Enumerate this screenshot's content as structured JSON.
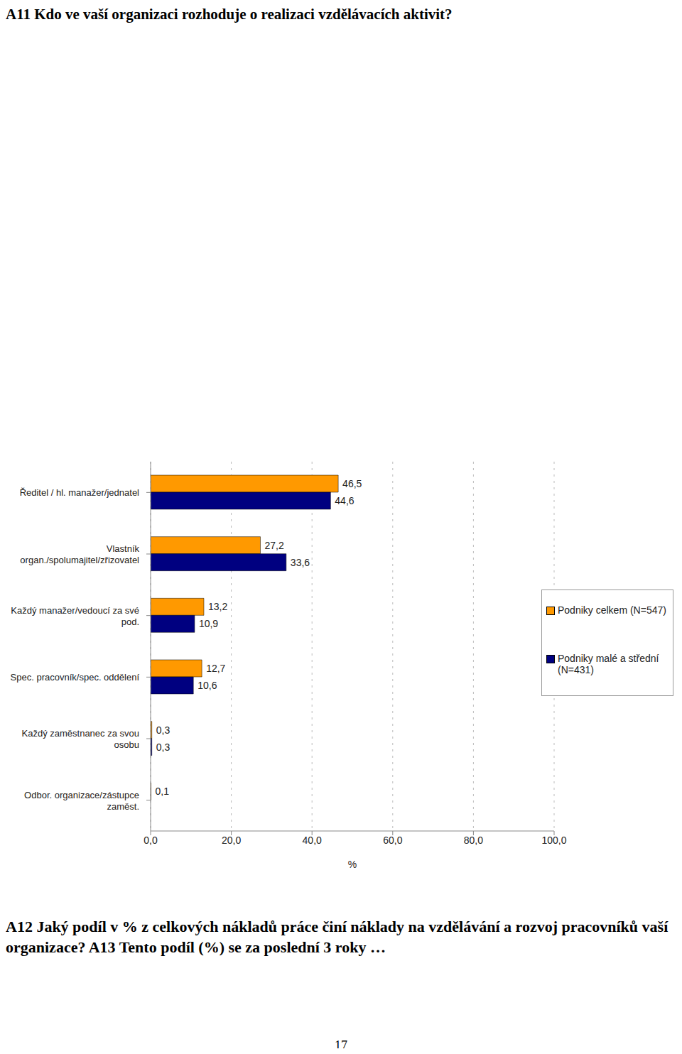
{
  "chart_data": {
    "type": "bar",
    "title": "A11 Kdo ve vaší organizaci rozhoduje o realizaci vzdělávacích aktivit?",
    "orientation": "horizontal",
    "categories": [
      "Ředitel / hl. manažer/jednatel",
      "Vlastník organ./spolumajitel/zřizovatel",
      "Každý manažer/vedoucí za své pod.",
      "Spec. pracovník/spec. oddělení",
      "Každý zaměstnanec za svou osobu",
      "Odbor. organizace/zástupce zaměst."
    ],
    "series": [
      {
        "name": "Podniky celkem (N=547)",
        "color": "#ff9900",
        "values": [
          46.5,
          27.2,
          13.2,
          12.7,
          0.3,
          0.1
        ],
        "value_labels": [
          "46,5",
          "27,2",
          "13,2",
          "12,7",
          "0,3",
          "0,1"
        ]
      },
      {
        "name": "Podniky malé a střední (N=431)",
        "color": "#000080",
        "values": [
          44.6,
          33.6,
          10.9,
          10.6,
          0.3,
          null
        ],
        "value_labels": [
          "44,6",
          "33,6",
          "10,9",
          "10,6",
          "0,3",
          null
        ]
      }
    ],
    "xlim": [
      0,
      100
    ],
    "xticks": [
      {
        "value": 0,
        "label": "0,0"
      },
      {
        "value": 20,
        "label": "20,0"
      },
      {
        "value": 40,
        "label": "40,0"
      },
      {
        "value": 60,
        "label": "60,0"
      },
      {
        "value": 80,
        "label": "80,0"
      },
      {
        "value": 100,
        "label": "100,0"
      }
    ],
    "x_label": "%",
    "grid": true,
    "data_labels": true,
    "legend": "right"
  },
  "document": {
    "next_heading": "A12 Jaký podíl v % z celkových nákladů práce činí náklady na vzdělávání a rozvoj pracovníků vaší organizace? A13 Tento podíl (%) se za poslední 3 roky …",
    "page_number": "17"
  }
}
